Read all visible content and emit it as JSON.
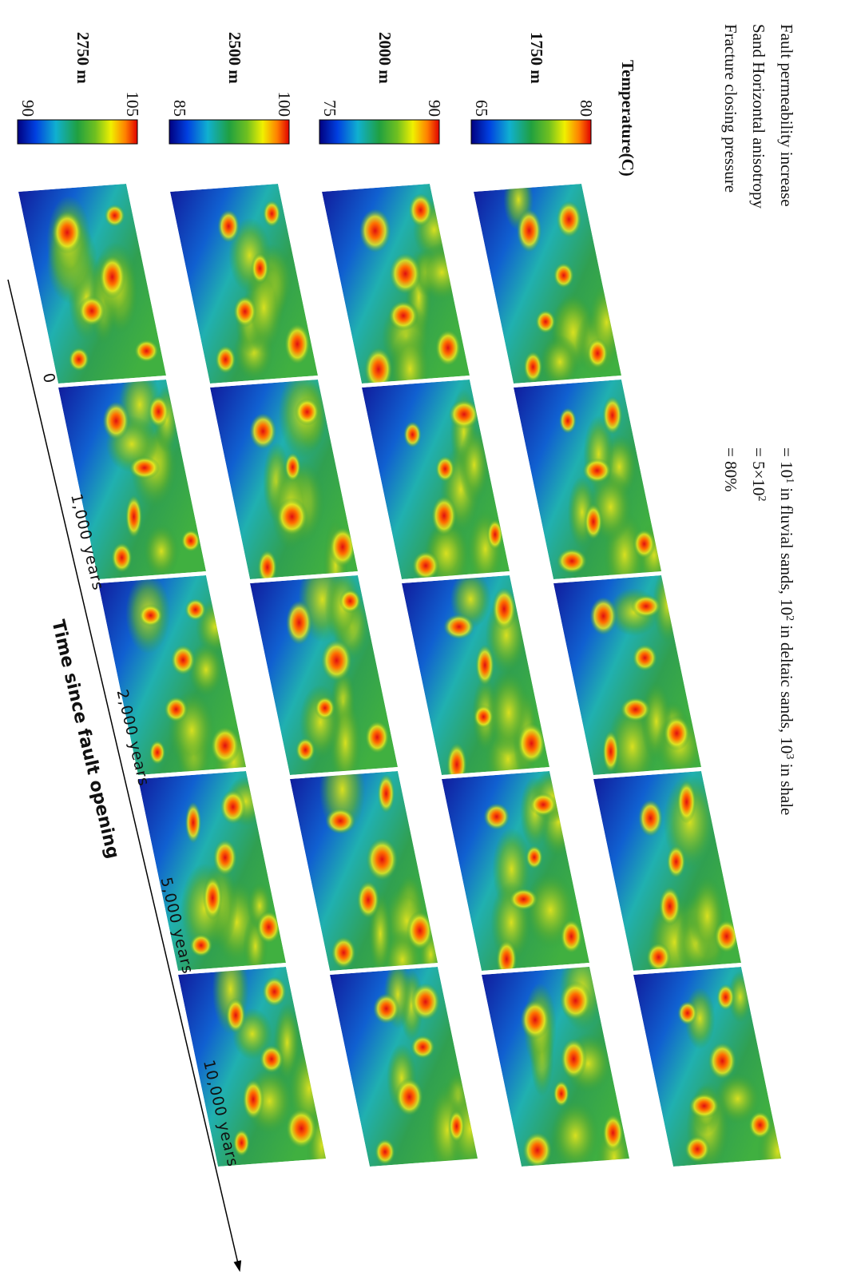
{
  "header": {
    "rows": [
      {
        "label": "Fault permeability increase",
        "value": [
          {
            "text": "= 10"
          },
          {
            "sup": "1"
          },
          {
            "text": " in fluvial sands, 10"
          },
          {
            "sup": "2"
          },
          {
            "text": " in deltaic sands, 10"
          },
          {
            "sup": "3"
          },
          {
            "text": " in shale"
          }
        ]
      },
      {
        "label": "Sand Horizontal anisotropy",
        "value": [
          {
            "text": "= 5×10"
          },
          {
            "sup": "2"
          }
        ]
      },
      {
        "label": "Fracture closing pressure",
        "value": [
          {
            "text": "= 80%"
          }
        ]
      }
    ]
  },
  "legend": {
    "title": "Temperature(C)",
    "rows": [
      {
        "depth": "1750 m",
        "max": 80,
        "min": 65
      },
      {
        "depth": "2000 m",
        "max": 90,
        "min": 75
      },
      {
        "depth": "2500 m",
        "max": 100,
        "min": 85
      },
      {
        "depth": "2750 m",
        "max": 105,
        "min": 90
      }
    ]
  },
  "time_axis": {
    "title": "Time since fault opening",
    "ticks": [
      "0",
      "1,000 years",
      "2,000 years",
      "5,000 years",
      "10,000 years"
    ]
  }
}
